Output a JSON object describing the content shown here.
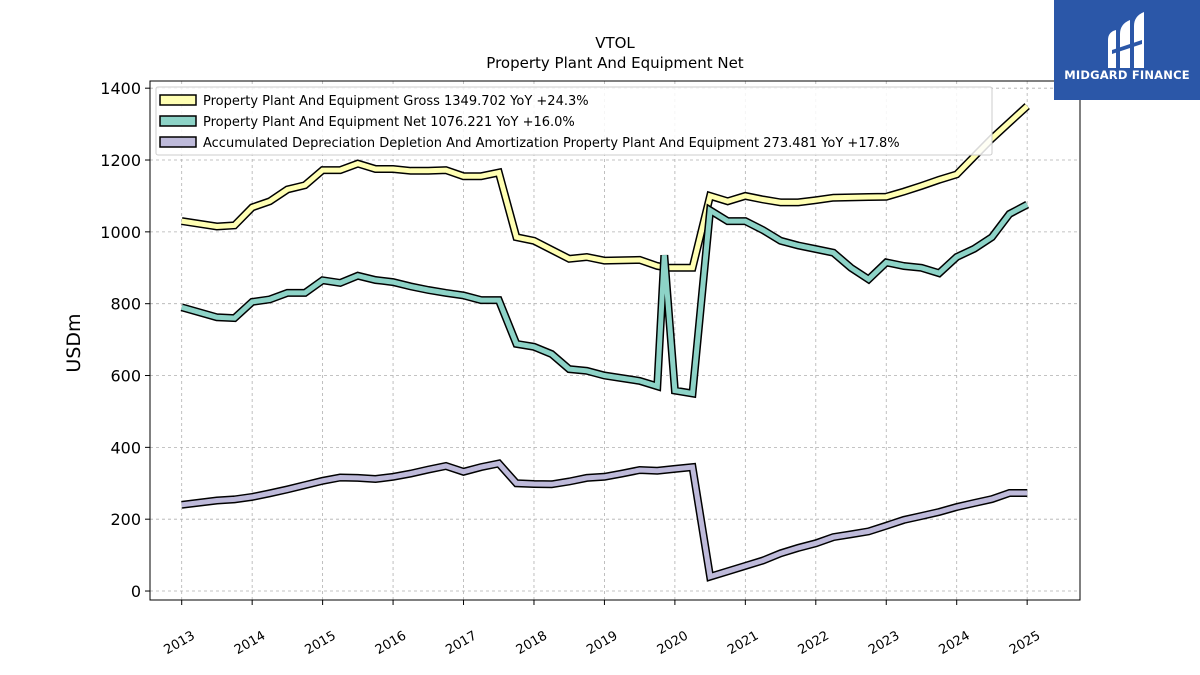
{
  "chart_data": {
    "type": "line",
    "title": "VTOL",
    "subtitle": "Property Plant And Equipment Net",
    "xlabel": "",
    "ylabel": "USDm",
    "xlim": [
      2012.55,
      2025.75
    ],
    "ylim": [
      -25,
      1420
    ],
    "yticks": [
      0,
      200,
      400,
      600,
      800,
      1000,
      1200,
      1400
    ],
    "xticks": [
      "2013",
      "2014",
      "2015",
      "2016",
      "2017",
      "2018",
      "2019",
      "2020",
      "2021",
      "2022",
      "2023",
      "2024",
      "2025"
    ],
    "grid": true,
    "legend_position": "top-left",
    "series": [
      {
        "name": "Property Plant And Equipment Gross  1349.702 YoY +24.3%",
        "color": "#ffffb3",
        "x": [
          2013.0,
          2013.5,
          2013.75,
          2014.0,
          2014.25,
          2014.5,
          2014.75,
          2015.0,
          2015.25,
          2015.5,
          2015.75,
          2016.0,
          2016.25,
          2016.5,
          2016.75,
          2017.0,
          2017.25,
          2017.5,
          2017.75,
          2018.0,
          2018.25,
          2018.5,
          2018.75,
          2019.0,
          2019.5,
          2019.75,
          2019.9,
          2020.0,
          2020.25,
          2020.5,
          2020.75,
          2021.0,
          2021.25,
          2021.5,
          2021.75,
          2022.0,
          2022.25,
          2022.75,
          2023.0,
          2023.25,
          2023.5,
          2023.75,
          2024.0,
          2024.25,
          2024.5,
          2024.75,
          2025.0
        ],
        "values": [
          1030,
          1015,
          1018,
          1068,
          1085,
          1118,
          1130,
          1172,
          1172,
          1190,
          1175,
          1175,
          1170,
          1170,
          1172,
          1155,
          1155,
          1165,
          985,
          975,
          950,
          925,
          930,
          920,
          922,
          905,
          900,
          900,
          900,
          1100,
          1085,
          1100,
          1090,
          1082,
          1082,
          1088,
          1095,
          1097,
          1098,
          1112,
          1128,
          1145,
          1160,
          1210,
          1260,
          1305,
          1350
        ]
      },
      {
        "name": "Property Plant And Equipment Net  1076.221 YoY +16.0%",
        "color": "#8dd3c7",
        "x": [
          2013.0,
          2013.5,
          2013.75,
          2014.0,
          2014.25,
          2014.5,
          2014.75,
          2015.0,
          2015.25,
          2015.5,
          2015.75,
          2016.0,
          2016.25,
          2016.5,
          2016.75,
          2017.0,
          2017.25,
          2017.5,
          2017.75,
          2018.0,
          2018.25,
          2018.5,
          2018.75,
          2019.0,
          2019.5,
          2019.75,
          2019.85,
          2020.0,
          2020.25,
          2020.5,
          2020.75,
          2021.0,
          2021.25,
          2021.5,
          2021.75,
          2022.0,
          2022.25,
          2022.5,
          2022.75,
          2023.0,
          2023.25,
          2023.5,
          2023.75,
          2024.0,
          2024.25,
          2024.5,
          2024.75,
          2025.0
        ],
        "values": [
          790,
          762,
          760,
          805,
          812,
          830,
          830,
          865,
          858,
          878,
          866,
          860,
          848,
          838,
          830,
          823,
          810,
          810,
          688,
          680,
          660,
          618,
          613,
          600,
          585,
          570,
          935,
          558,
          550,
          1060,
          1030,
          1030,
          1005,
          975,
          962,
          952,
          942,
          900,
          868,
          915,
          905,
          900,
          885,
          930,
          953,
          985,
          1050,
          1076
        ]
      },
      {
        "name": "Accumulated Depreciation Depletion And Amortization Property Plant And Equipment  273.481 YoY +17.8%",
        "color": "#bebada",
        "x": [
          2013.0,
          2013.5,
          2013.75,
          2014.0,
          2014.25,
          2014.5,
          2014.75,
          2015.0,
          2015.25,
          2015.5,
          2015.75,
          2016.0,
          2016.25,
          2016.5,
          2016.75,
          2017.0,
          2017.25,
          2017.5,
          2017.75,
          2018.0,
          2018.25,
          2018.5,
          2018.75,
          2019.0,
          2019.25,
          2019.5,
          2019.75,
          2020.0,
          2020.25,
          2020.5,
          2020.75,
          2021.0,
          2021.25,
          2021.5,
          2021.75,
          2022.0,
          2022.25,
          2022.5,
          2022.75,
          2023.0,
          2023.25,
          2023.5,
          2023.75,
          2024.0,
          2024.25,
          2024.5,
          2024.75,
          2025.0
        ],
        "values": [
          240,
          252,
          255,
          262,
          272,
          283,
          295,
          307,
          316,
          315,
          312,
          318,
          327,
          338,
          348,
          332,
          345,
          355,
          300,
          298,
          297,
          305,
          315,
          318,
          327,
          337,
          335,
          340,
          345,
          40,
          55,
          70,
          85,
          105,
          120,
          133,
          150,
          158,
          166,
          182,
          198,
          209,
          220,
          234,
          245,
          256,
          273,
          273
        ]
      }
    ]
  },
  "logo": {
    "text": "MIDGARD FINANCE",
    "bg_color": "#2b57a8"
  }
}
